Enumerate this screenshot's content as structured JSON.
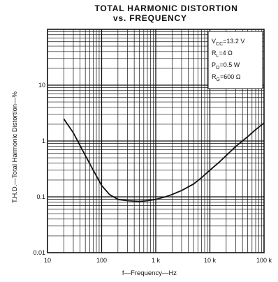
{
  "chart_data": {
    "type": "line",
    "title_line1": "TOTAL HARMONIC DISTORTION",
    "title_line2": "vs. FREQUENCY",
    "xlabel": "f—Frequency—Hz",
    "ylabel": "T.H.D.—Total Harmonic Distortion—%",
    "x_scale": "log",
    "y_scale": "log",
    "xlim": [
      10,
      100000
    ],
    "ylim": [
      0.01,
      100
    ],
    "grid": true,
    "x_ticks": [
      {
        "value": 10,
        "label": "10"
      },
      {
        "value": 100,
        "label": "100"
      },
      {
        "value": 1000,
        "label": "1 k"
      },
      {
        "value": 10000,
        "label": "10 k"
      },
      {
        "value": 100000,
        "label": "100 k"
      }
    ],
    "y_ticks": [
      {
        "value": 0.01,
        "label": "0.01"
      },
      {
        "value": 0.1,
        "label": "0.1"
      },
      {
        "value": 1,
        "label": "1"
      },
      {
        "value": 10,
        "label": "10"
      }
    ],
    "conditions_box": {
      "placement": "top-right",
      "lines": [
        {
          "main": "V",
          "sub": "CC",
          "rest": "=13.2 V"
        },
        {
          "main": "R",
          "sub": "L",
          "rest": "=4 Ω"
        },
        {
          "main": "P",
          "sub": "O",
          "rest": "=0.5 W"
        },
        {
          "main": "R",
          "sub": "G",
          "rest": "=600 Ω"
        }
      ]
    },
    "series": [
      {
        "x": [
          20,
          30,
          50,
          70,
          100,
          140,
          200,
          300,
          500,
          700,
          1000,
          1500,
          2000,
          3000,
          5000,
          7000,
          10000,
          15000,
          20000,
          30000,
          50000,
          70000,
          100000
        ],
        "y": [
          2.5,
          1.4,
          0.55,
          0.3,
          0.16,
          0.11,
          0.09,
          0.085,
          0.083,
          0.085,
          0.09,
          0.1,
          0.11,
          0.13,
          0.17,
          0.22,
          0.3,
          0.42,
          0.55,
          0.8,
          1.2,
          1.6,
          2.1
        ]
      }
    ]
  }
}
